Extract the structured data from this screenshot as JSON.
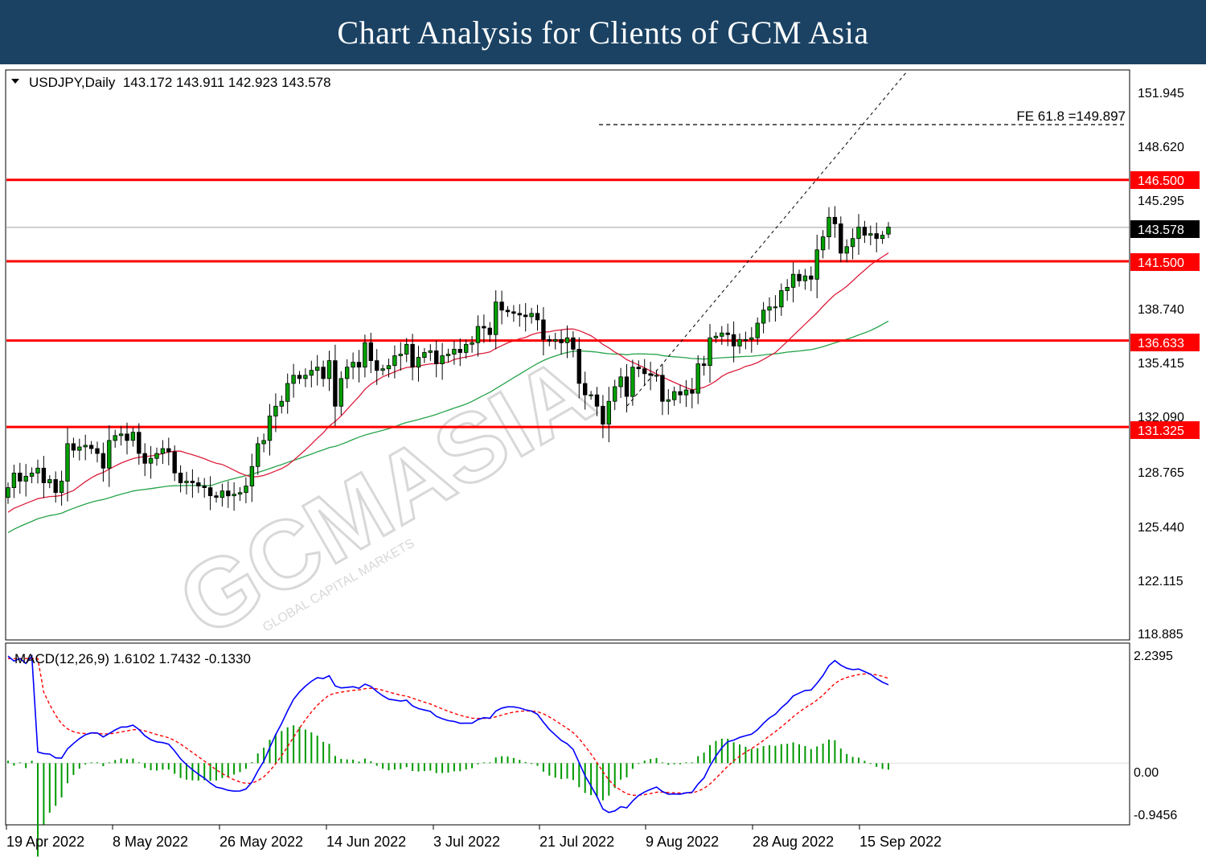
{
  "header": {
    "title": "Chart Analysis for Clients of GCM Asia"
  },
  "watermark": {
    "main": "GCMASIA",
    "sub": "GLOBAL CAPITAL MARKETS"
  },
  "colors": {
    "banner": "#1b4263",
    "bull_candle": "#00a000",
    "bear_candle": "#000000",
    "sr_line": "#ff0000",
    "ma_fast": "#dc1e3c",
    "ma_slow": "#26a34a",
    "macd_line": "#0000ff",
    "signal_line": "#ff0000",
    "histogram": "#009900"
  },
  "chart_data": [
    {
      "type": "candlestick",
      "symbol_info": "USDJPY,Daily  143.172 143.911 142.923 143.578",
      "ohlc": {
        "open": 143.172,
        "high": 143.911,
        "low": 142.923,
        "close": 143.578
      },
      "x_labels": [
        "19 Apr 2022",
        "8 May 2022",
        "26 May 2022",
        "14 Jun 2022",
        "3 Jul 2022",
        "21 Jul 2022",
        "9 Aug 2022",
        "28 Aug 2022",
        "15 Sep 2022"
      ],
      "y_ticks": [
        "151.945",
        "148.620",
        "145.295",
        "138.740",
        "135.415",
        "132.090",
        "128.765",
        "125.440",
        "122.115",
        "118.885"
      ],
      "ylim": [
        118.3,
        153.2
      ],
      "closes": [
        127.6,
        128.5,
        128.0,
        128.3,
        128.5,
        128.8,
        127.9,
        128.1,
        127.3,
        128.0,
        130.3,
        129.9,
        130.1,
        130.2,
        130.0,
        129.7,
        128.8,
        130.5,
        130.8,
        130.9,
        130.5,
        131.0,
        129.7,
        129.1,
        129.4,
        129.7,
        130.0,
        129.8,
        128.5,
        127.9,
        128.0,
        127.9,
        127.7,
        127.6,
        127.1,
        127.0,
        127.4,
        127.1,
        127.2,
        127.3,
        127.7,
        128.9,
        130.3,
        130.5,
        132.0,
        132.6,
        132.9,
        134.0,
        134.5,
        134.3,
        134.5,
        134.8,
        135.0,
        134.3,
        135.4,
        132.6,
        134.3,
        135.0,
        135.3,
        135.0,
        136.5,
        135.4,
        134.8,
        134.9,
        135.1,
        135.7,
        135.8,
        136.4,
        135.0,
        135.6,
        135.9,
        136.0,
        135.2,
        135.7,
        135.8,
        136.1,
        135.9,
        136.4,
        136.5,
        137.5,
        137.4,
        137.0,
        139.0,
        138.5,
        138.4,
        138.3,
        138.2,
        138.1,
        138.3,
        137.9,
        136.7,
        136.6,
        136.7,
        136.5,
        136.8,
        136.1,
        134.0,
        133.3,
        133.3,
        132.6,
        131.5,
        132.9,
        133.8,
        134.4,
        133.2,
        135.0,
        134.9,
        134.6,
        134.5,
        134.5,
        132.9,
        133.0,
        133.5,
        133.3,
        133.6,
        133.4,
        135.2,
        135.1,
        136.8,
        136.9,
        137.1,
        137.0,
        136.3,
        136.7,
        136.7,
        136.8,
        137.7,
        138.5,
        138.7,
        138.7,
        139.7,
        139.9,
        140.7,
        140.3,
        140.6,
        140.4,
        142.2,
        143.0,
        144.2,
        143.8,
        142.0,
        142.4,
        142.9,
        143.6,
        143.1,
        143.2,
        142.9,
        143.1,
        143.6
      ]
    },
    {
      "type": "macd",
      "info": "MACD(12,26,9) 1.6102 1.7432 -0.1330",
      "params": [
        12,
        26,
        9
      ],
      "values": {
        "macd": 1.6102,
        "signal": 1.7432,
        "histogram": -0.133
      },
      "y_ticks": [
        "2.2395",
        "0.00",
        "-0.9456"
      ],
      "ylim": [
        -1.25,
        2.45
      ]
    }
  ],
  "annotations": {
    "fe_label": "FE 61.8 =149.897",
    "fe_level": 149.897,
    "levels": [
      {
        "value": 146.5,
        "label": "146.500"
      },
      {
        "value": 141.5,
        "label": "141.500"
      },
      {
        "value": 136.633,
        "label": "136.633"
      },
      {
        "value": 131.325,
        "label": "131.325"
      }
    ],
    "last_price": {
      "value": 143.578,
      "label": "143.578"
    }
  }
}
